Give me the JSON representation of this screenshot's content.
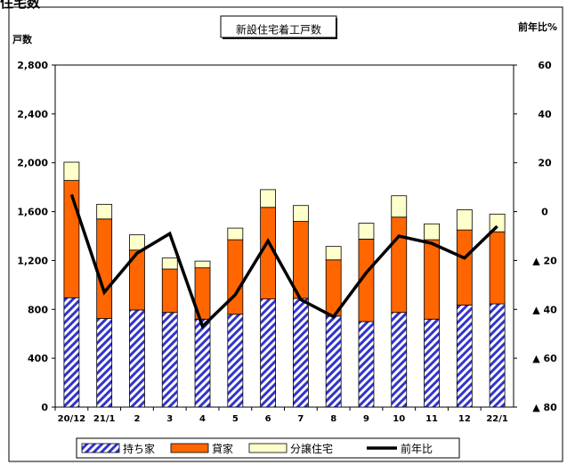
{
  "page_header": "住宅数",
  "chart_data": {
    "type": "bar",
    "stacked": true,
    "title": "新設住宅着工戸数",
    "y_left_label": "戸数",
    "y_right_label": "前年比%",
    "categories": [
      "20/12",
      "21/1",
      "2",
      "3",
      "4",
      "5",
      "6",
      "7",
      "8",
      "9",
      "10",
      "11",
      "12",
      "22/1"
    ],
    "y_left": {
      "min": 0,
      "max": 2800,
      "ticks": [
        "0",
        "400",
        "800",
        "1,200",
        "1,600",
        "2,000",
        "2,400",
        "2,800"
      ],
      "tick_values": [
        0,
        400,
        800,
        1200,
        1600,
        2000,
        2400,
        2800
      ]
    },
    "y_right": {
      "min": -80,
      "max": 60,
      "ticks": [
        "▲ 80",
        "▲ 60",
        "▲ 40",
        "▲ 20",
        "0",
        "20",
        "40",
        "60"
      ],
      "tick_values": [
        -80,
        -60,
        -40,
        -20,
        0,
        20,
        40,
        60
      ]
    },
    "series": [
      {
        "name": "持ち家",
        "kind": "bar",
        "pattern": "hatch",
        "color": "#3333cc",
        "values": [
          895,
          725,
          795,
          775,
          720,
          760,
          885,
          890,
          745,
          700,
          775,
          720,
          835,
          845
        ]
      },
      {
        "name": "貸家",
        "kind": "bar",
        "color": "#ff6600",
        "values": [
          960,
          815,
          490,
          355,
          420,
          610,
          750,
          630,
          460,
          675,
          780,
          650,
          615,
          590
        ]
      },
      {
        "name": "分譲住宅",
        "kind": "bar",
        "color": "#ffffcc",
        "values": [
          150,
          120,
          125,
          90,
          55,
          95,
          145,
          130,
          110,
          130,
          175,
          130,
          165,
          145
        ]
      },
      {
        "name": "前年比",
        "kind": "line",
        "axis": "right",
        "color": "#000000",
        "values": [
          7,
          -33,
          -17,
          -9,
          -47,
          -34,
          -12,
          -36,
          -43,
          -25,
          -10,
          -13,
          -19,
          -6
        ]
      }
    ],
    "legend": {
      "placement": "bottom",
      "items": [
        "持ち家",
        "貸家",
        "分譲住宅",
        "前年比"
      ]
    },
    "grid": false
  }
}
